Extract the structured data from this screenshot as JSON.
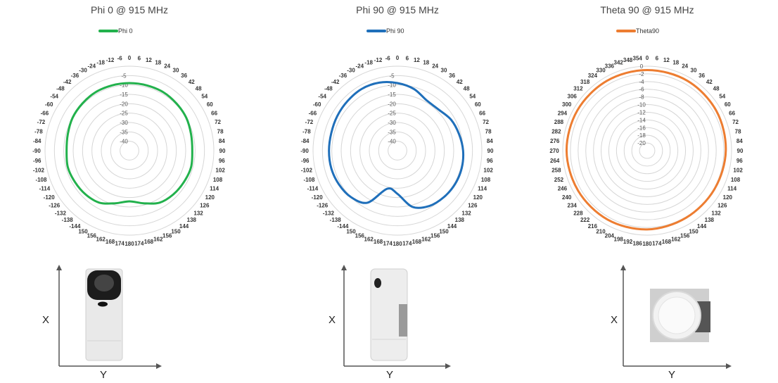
{
  "chart_data": [
    {
      "type": "polar-line",
      "title": "Phi 0 @ 915 MHz",
      "legend": {
        "placement": "top-center",
        "entries": [
          "Phi 0"
        ]
      },
      "series": [
        {
          "name": "Phi 0",
          "color": "#22b14c",
          "angles": [
            0,
            15,
            30,
            45,
            60,
            75,
            90,
            105,
            120,
            135,
            150,
            165,
            180,
            195,
            210,
            225,
            240,
            255,
            270,
            285,
            300,
            315,
            330,
            345
          ],
          "values": [
            -9,
            -9,
            -9,
            -9.5,
            -10,
            -11,
            -11.5,
            -11,
            -11.5,
            -12,
            -13,
            -16,
            -18,
            -16,
            -13,
            -12,
            -11.5,
            -11,
            -11.5,
            -11,
            -10,
            -9.5,
            -9,
            -9
          ]
        }
      ],
      "radial": {
        "min": -45,
        "max": 0,
        "ticks": [
          -40,
          -35,
          -30,
          -25,
          -20,
          -15,
          -10,
          -5,
          0
        ],
        "tick_labels": [
          "-40",
          "-35",
          "-30",
          "-25",
          "-20",
          "-15",
          "-10",
          "-5",
          "0"
        ]
      },
      "angle_labels": [
        "0",
        "6",
        "12",
        "18",
        "24",
        "30",
        "36",
        "42",
        "48",
        "54",
        "60",
        "66",
        "72",
        "78",
        "84",
        "90",
        "96",
        "102",
        "108",
        "114",
        "120",
        "126",
        "132",
        "138",
        "144",
        "150",
        "156",
        "162",
        "168",
        "174",
        "180",
        "174",
        "168",
        "162",
        "156",
        "150",
        "-144",
        "-138",
        "-132",
        "-126",
        "-120",
        "-114",
        "-108",
        "-102",
        "-96",
        "-90",
        "-84",
        "-78",
        "-72",
        "-66",
        "-60",
        "-54",
        "-48",
        "-42",
        "-36",
        "-30",
        "-24",
        "-18",
        "-12",
        "-6"
      ]
    },
    {
      "type": "polar-line",
      "title": "Phi 90 @ 915 MHz",
      "legend": {
        "placement": "top-center",
        "entries": [
          "Phi 90"
        ]
      },
      "series": [
        {
          "name": "Phi 90",
          "color": "#1f6fba",
          "angles": [
            0,
            15,
            30,
            45,
            60,
            75,
            90,
            105,
            120,
            135,
            150,
            165,
            180,
            195,
            210,
            225,
            240,
            255,
            270,
            285,
            300,
            315,
            330,
            345
          ],
          "values": [
            -9,
            -11,
            -14,
            -14,
            -12,
            -11,
            -10,
            -9.5,
            -9.5,
            -10,
            -11,
            -14,
            -22,
            -24,
            -13,
            -10,
            -9,
            -8.5,
            -8.5,
            -8.5,
            -8,
            -7.5,
            -7,
            -7.5
          ]
        }
      ],
      "radial": {
        "min": -45,
        "max": 0,
        "ticks": [
          -40,
          -35,
          -30,
          -25,
          -20,
          -15,
          -10,
          -5,
          0
        ],
        "tick_labels": [
          "-40",
          "-35",
          "-30",
          "-25",
          "-20",
          "-15",
          "-10",
          "-5",
          "0"
        ]
      },
      "angle_labels": [
        "0",
        "6",
        "12",
        "18",
        "24",
        "30",
        "36",
        "42",
        "48",
        "54",
        "60",
        "66",
        "72",
        "78",
        "84",
        "90",
        "96",
        "102",
        "108",
        "114",
        "120",
        "126",
        "132",
        "138",
        "144",
        "150",
        "156",
        "162",
        "168",
        "174",
        "180",
        "174",
        "168",
        "162",
        "156",
        "150",
        "-144",
        "-138",
        "-132",
        "-126",
        "-120",
        "-114",
        "-108",
        "-102",
        "-96",
        "-90",
        "-84",
        "-78",
        "-72",
        "-66",
        "-60",
        "-54",
        "-48",
        "-42",
        "-36",
        "-30",
        "-24",
        "-18",
        "-12",
        "-6"
      ]
    },
    {
      "type": "polar-line",
      "title": "Theta 90 @ 915 MHz",
      "legend": {
        "placement": "top-center",
        "entries": [
          "Theta90"
        ]
      },
      "series": [
        {
          "name": "Theta90",
          "color": "#ed7d31",
          "angles": [
            0,
            30,
            60,
            90,
            120,
            150,
            180,
            210,
            240,
            270,
            300,
            330
          ],
          "values": [
            -1,
            -1,
            -1.2,
            -1.5,
            -1.8,
            -1.8,
            -1.5,
            -1.3,
            -1.2,
            -1,
            -1,
            -1
          ]
        }
      ],
      "radial": {
        "min": -22,
        "max": 0,
        "ticks": [
          -20,
          -18,
          -16,
          -14,
          -12,
          -10,
          -8,
          -6,
          -4,
          -2,
          0
        ],
        "tick_labels": [
          "-20",
          "-18",
          "-16",
          "-14",
          "-12",
          "-10",
          "-8",
          "-6",
          "-4",
          "-2",
          "0"
        ]
      },
      "angle_labels": [
        "0",
        "6",
        "12",
        "18",
        "24",
        "30",
        "36",
        "42",
        "48",
        "54",
        "60",
        "66",
        "72",
        "78",
        "84",
        "90",
        "96",
        "102",
        "108",
        "114",
        "120",
        "126",
        "132",
        "138",
        "144",
        "150",
        "156",
        "162",
        "168",
        "174",
        "180",
        "186",
        "192",
        "198",
        "204",
        "210",
        "216",
        "222",
        "228",
        "234",
        "240",
        "246",
        "252",
        "258",
        "264",
        "270",
        "276",
        "282",
        "288",
        "294",
        "300",
        "306",
        "312",
        "318",
        "324",
        "330",
        "336",
        "342",
        "348",
        "354"
      ]
    }
  ],
  "figures": [
    {
      "axis_x_label": "X",
      "axis_y_label": "Y",
      "photo": "device-photo-front"
    },
    {
      "axis_x_label": "X",
      "axis_y_label": "Y",
      "photo": "device-photo-side"
    },
    {
      "axis_x_label": "X",
      "axis_y_label": "Y",
      "photo": "device-photo-top"
    }
  ]
}
